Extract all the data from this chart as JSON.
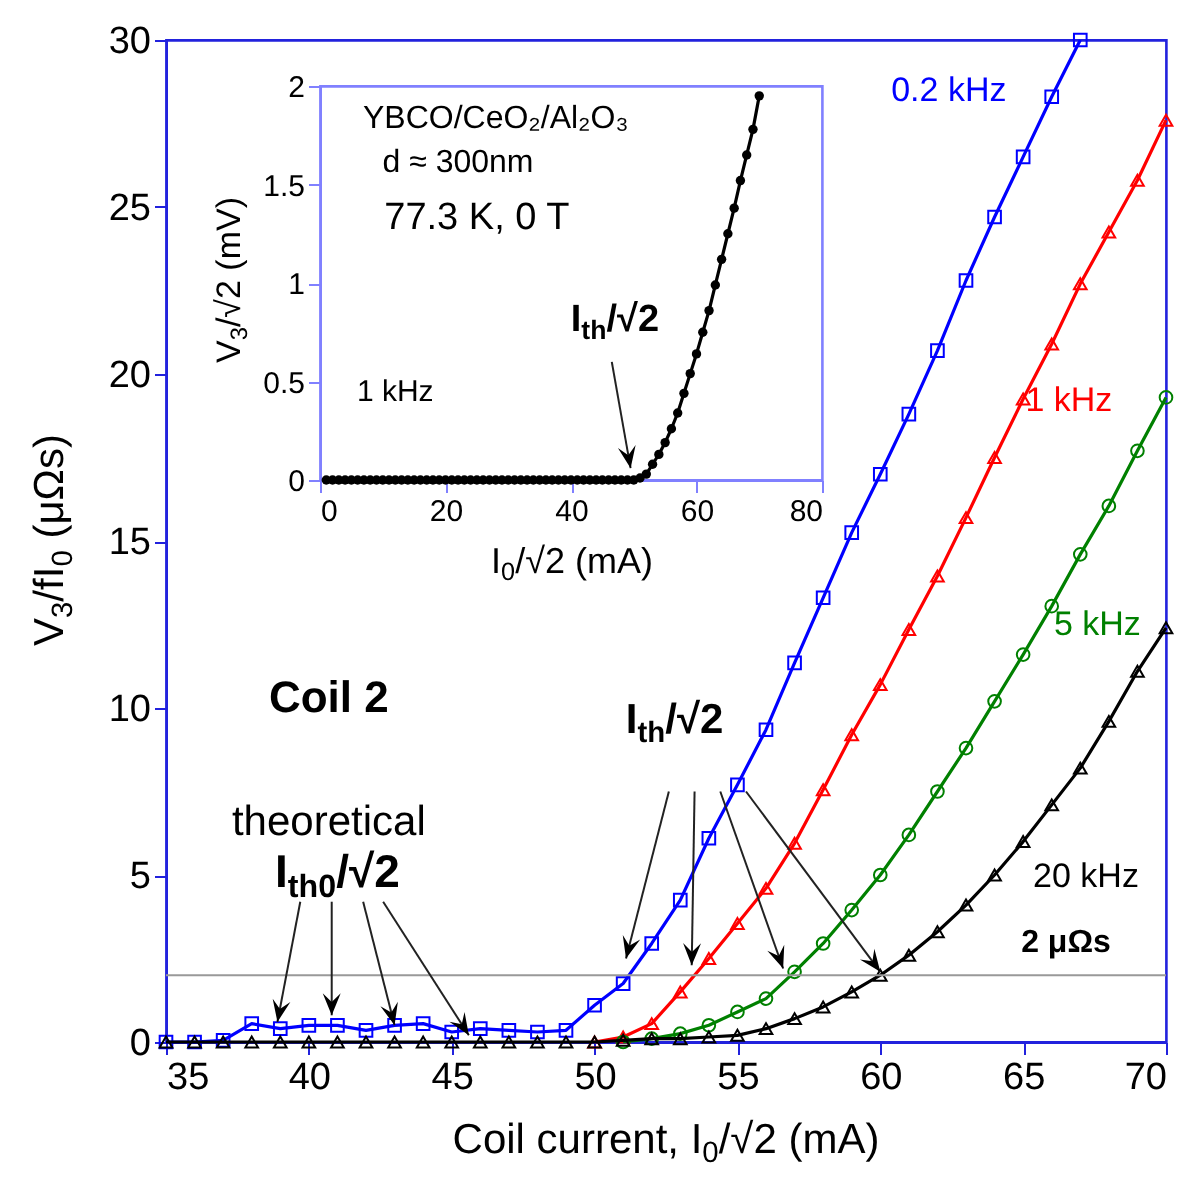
{
  "chart_data": [
    {
      "type": "line",
      "xlabel": "Coil current, I$_{0}$/√2 (mA)",
      "ylabel": "V$_{3}$/fI$_{0}$ (μΩs)",
      "xlim": [
        35,
        70
      ],
      "xticks": [
        35,
        40,
        45,
        50,
        55,
        60,
        65,
        70
      ],
      "ylim": [
        0,
        30
      ],
      "yticks": [
        0,
        5,
        10,
        15,
        20,
        25,
        30
      ],
      "x": [
        35,
        36,
        37,
        38,
        39,
        40,
        41,
        42,
        43,
        44,
        45,
        46,
        47,
        48,
        49,
        50,
        51,
        52,
        53,
        54,
        55,
        56,
        57,
        58,
        59,
        60,
        61,
        62,
        63,
        64,
        65,
        66,
        67,
        68,
        69,
        70
      ],
      "series": [
        {
          "name": "0.2 kHz",
          "color": "#0000ff",
          "marker": "square",
          "values": [
            0,
            0,
            0.05,
            0.55,
            0.4,
            0.5,
            0.5,
            0.35,
            0.5,
            0.55,
            0.3,
            0.4,
            0.35,
            0.3,
            0.35,
            1.1,
            1.75,
            2.95,
            4.25,
            6.1,
            7.7,
            9.35,
            11.35,
            13.3,
            15.25,
            17.0,
            18.8,
            20.7,
            22.8,
            24.7,
            26.5,
            28.3,
            30,
            null,
            null,
            null
          ]
        },
        {
          "name": "1 kHz",
          "color": "#ff0000",
          "marker": "triangle",
          "values": [
            null,
            null,
            null,
            null,
            null,
            null,
            null,
            null,
            null,
            null,
            null,
            null,
            null,
            null,
            null,
            0,
            0.15,
            0.55,
            1.5,
            2.5,
            3.55,
            4.6,
            5.95,
            7.55,
            9.2,
            10.7,
            12.35,
            13.95,
            15.7,
            17.5,
            19.25,
            20.9,
            22.7,
            24.25,
            25.8,
            27.6
          ]
        },
        {
          "name": "5 kHz",
          "color": "#008000",
          "marker": "circle",
          "values": [
            null,
            null,
            null,
            null,
            null,
            null,
            null,
            null,
            null,
            null,
            null,
            null,
            null,
            null,
            null,
            null,
            0,
            0.1,
            0.25,
            0.5,
            0.9,
            1.3,
            2.1,
            2.95,
            3.95,
            5.0,
            6.2,
            7.5,
            8.8,
            10.2,
            11.6,
            13.05,
            14.6,
            16.05,
            17.7,
            19.3
          ]
        },
        {
          "name": "20 kHz",
          "color": "#000000",
          "marker": "triangle",
          "values": [
            0,
            0,
            0,
            0,
            0,
            0,
            0,
            0,
            0,
            0,
            0,
            0,
            0,
            0,
            0,
            0,
            0.05,
            0.1,
            0.1,
            0.15,
            0.2,
            0.4,
            0.7,
            1.05,
            1.5,
            2.0,
            2.6,
            3.3,
            4.1,
            5.0,
            6.0,
            7.1,
            8.2,
            9.6,
            11.1,
            12.4
          ]
        }
      ],
      "ref_lines": [
        {
          "axis": "y",
          "value": 2,
          "label": "2 μΩs",
          "color": "#999999"
        }
      ],
      "annotations": [
        "Coil 2",
        "theoretical",
        {
          "text": "I$_{th0}$/√2",
          "x": 43,
          "y": 0.5
        },
        {
          "text": "I$_{th}$/√2",
          "x": 56.6,
          "y": 2.2
        }
      ]
    },
    {
      "type": "line",
      "xlabel": "I$_{0}$/√2 (mA)",
      "ylabel": "V$_{3}$/√2 (mV)",
      "xlim": [
        0,
        80
      ],
      "xticks": [
        0,
        20,
        40,
        60,
        80
      ],
      "ylim": [
        0,
        2
      ],
      "yticks": [
        0,
        0.5,
        1,
        1.5,
        2
      ],
      "x": [
        1,
        2,
        3,
        4,
        5,
        6,
        7,
        8,
        9,
        10,
        11,
        12,
        13,
        14,
        15,
        16,
        17,
        18,
        19,
        20,
        21,
        22,
        23,
        24,
        25,
        26,
        27,
        28,
        29,
        30,
        31,
        32,
        33,
        34,
        35,
        36,
        37,
        38,
        39,
        40,
        41,
        42,
        43,
        44,
        45,
        46,
        47,
        48,
        49,
        50,
        51,
        52,
        53,
        54,
        55,
        56,
        57,
        58,
        59,
        60,
        61,
        62,
        63,
        64,
        65,
        66,
        67,
        68,
        69,
        70
      ],
      "series": [
        {
          "color": "#000000",
          "marker": "circle",
          "values": [
            0,
            0,
            0,
            0,
            0,
            0,
            0,
            0,
            0,
            0,
            0,
            0,
            0,
            0,
            0,
            0,
            0,
            0,
            0,
            0,
            0,
            0,
            0,
            0,
            0,
            0,
            0,
            0,
            0,
            0,
            0,
            0,
            0,
            0,
            0,
            0,
            0,
            0,
            0,
            0,
            0,
            0,
            0,
            0,
            0,
            0,
            0,
            0,
            0,
            0,
            0.01,
            0.03,
            0.08,
            0.13,
            0.19,
            0.26,
            0.34,
            0.44,
            0.54,
            0.64,
            0.75,
            0.86,
            0.99,
            1.12,
            1.25,
            1.38,
            1.52,
            1.65,
            1.78,
            1.95
          ]
        }
      ],
      "annotations": [
        "YBCO/CeO₂/Al₂O₃",
        "d ≈ 300nm",
        "77.3 K, 0 T",
        "1 kHz",
        {
          "text": "I$_{th}$/√2",
          "x": 49.5,
          "y": 0.06
        }
      ]
    }
  ]
}
